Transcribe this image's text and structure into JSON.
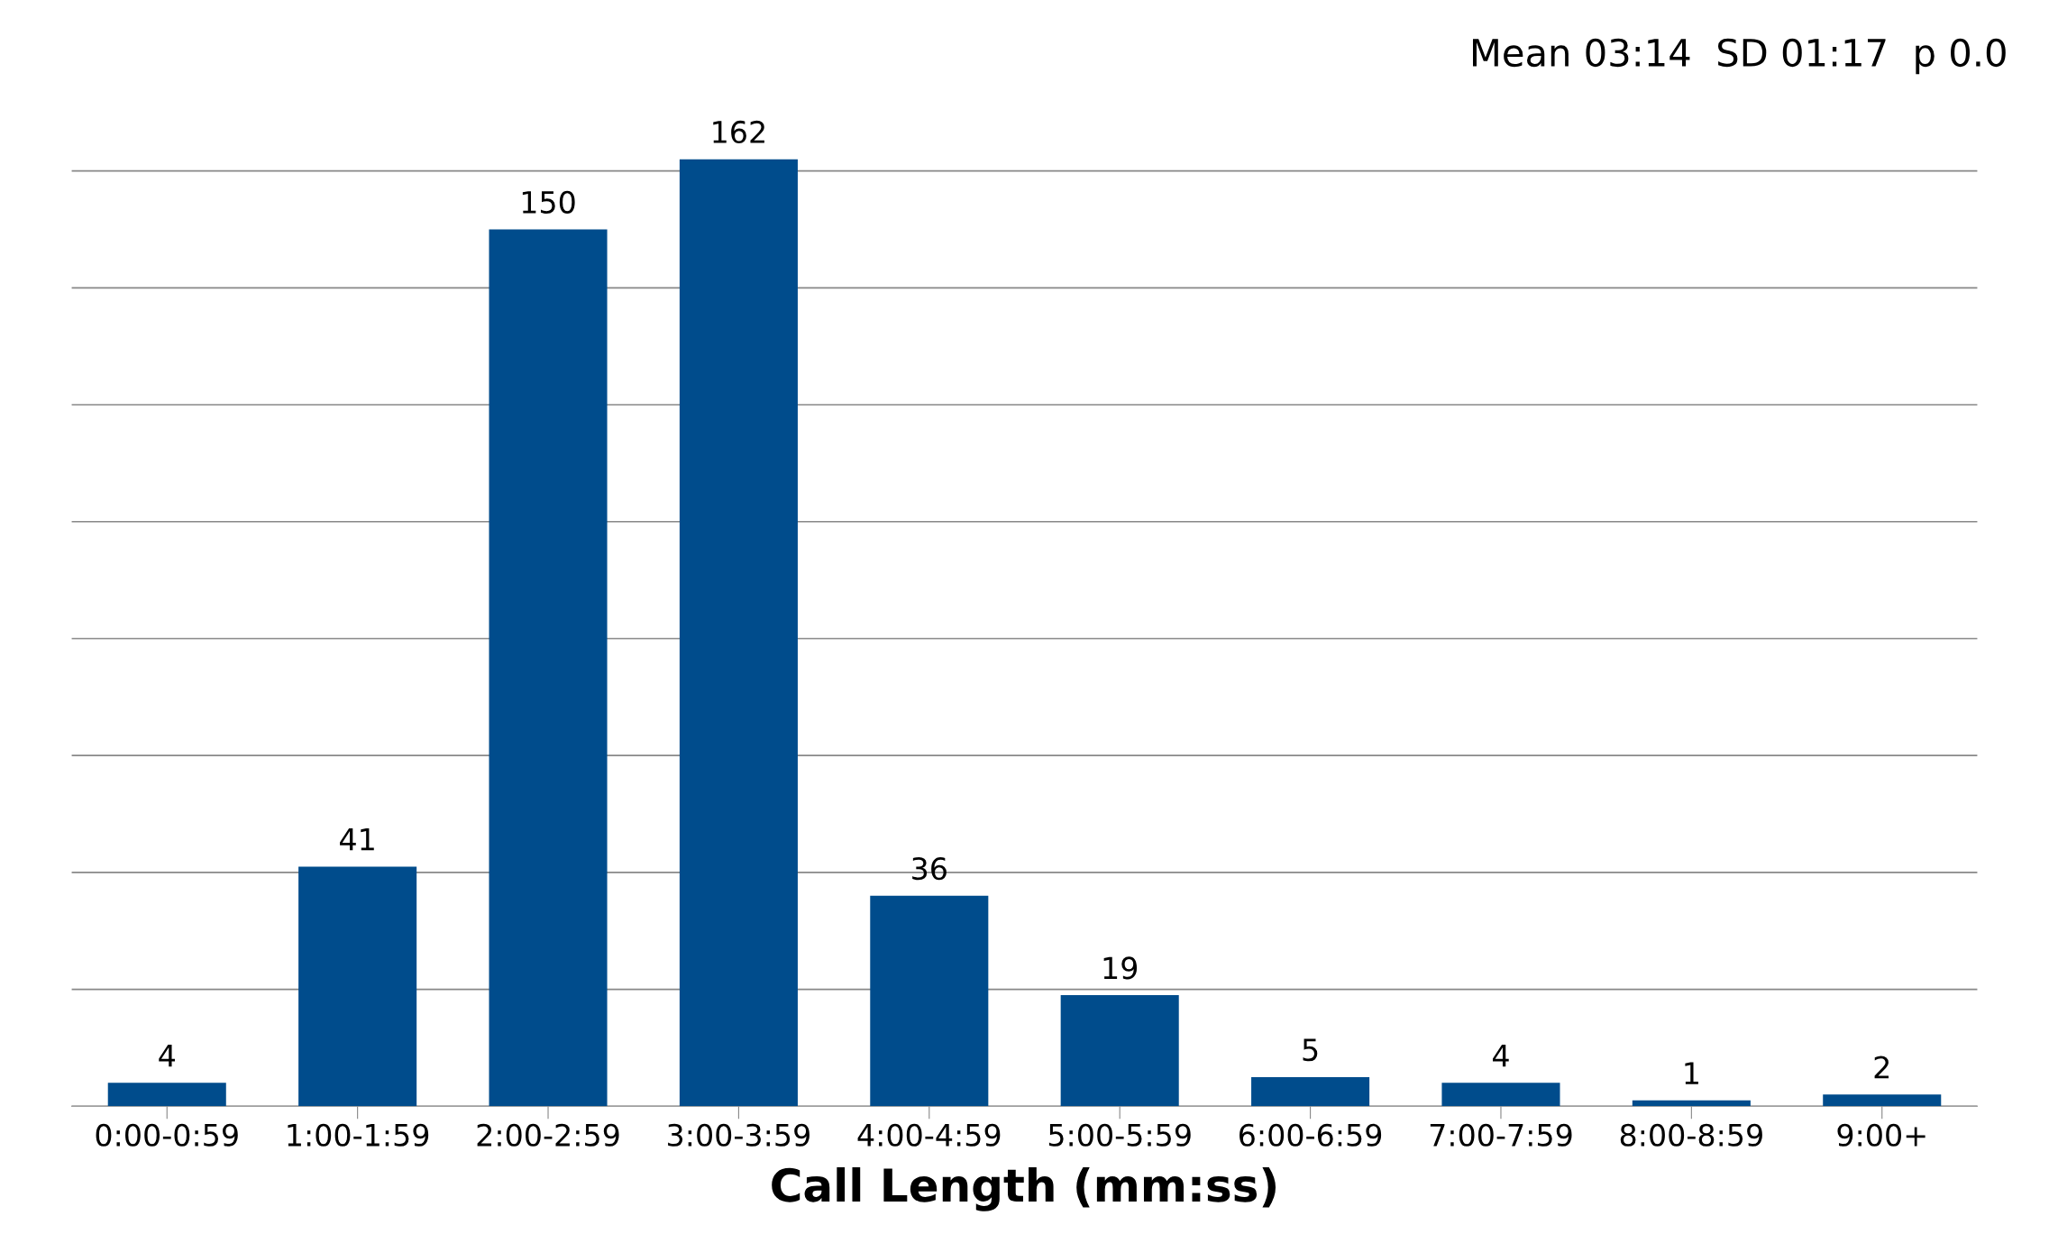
{
  "chart_data": {
    "type": "bar",
    "xlabel": "Call Length (mm:ss)",
    "categories": [
      "0:00-0:59",
      "1:00-1:59",
      "2:00-2:59",
      "3:00-3:59",
      "4:00-4:59",
      "5:00-5:59",
      "6:00-6:59",
      "7:00-7:59",
      "8:00-8:59",
      "9:00+"
    ],
    "values": [
      4,
      41,
      150,
      162,
      36,
      19,
      5,
      4,
      1,
      2
    ],
    "color": "#004c8c",
    "data_labels": true,
    "yticks": [
      {
        "value": 0,
        "label": null
      },
      {
        "value": 20,
        "label": null
      },
      {
        "value": 40,
        "label": null
      },
      {
        "value": 60,
        "label": null
      },
      {
        "value": 80,
        "label": null
      },
      {
        "value": 100,
        "label": null
      },
      {
        "value": 120,
        "label": null
      },
      {
        "value": 140,
        "label": null
      },
      {
        "value": 160,
        "label": null
      }
    ],
    "tick_labels": "x",
    "grid": "y",
    "legend": false,
    "annotations": [
      "Mean 03:14  SD 01:17  p 0.0"
    ]
  }
}
